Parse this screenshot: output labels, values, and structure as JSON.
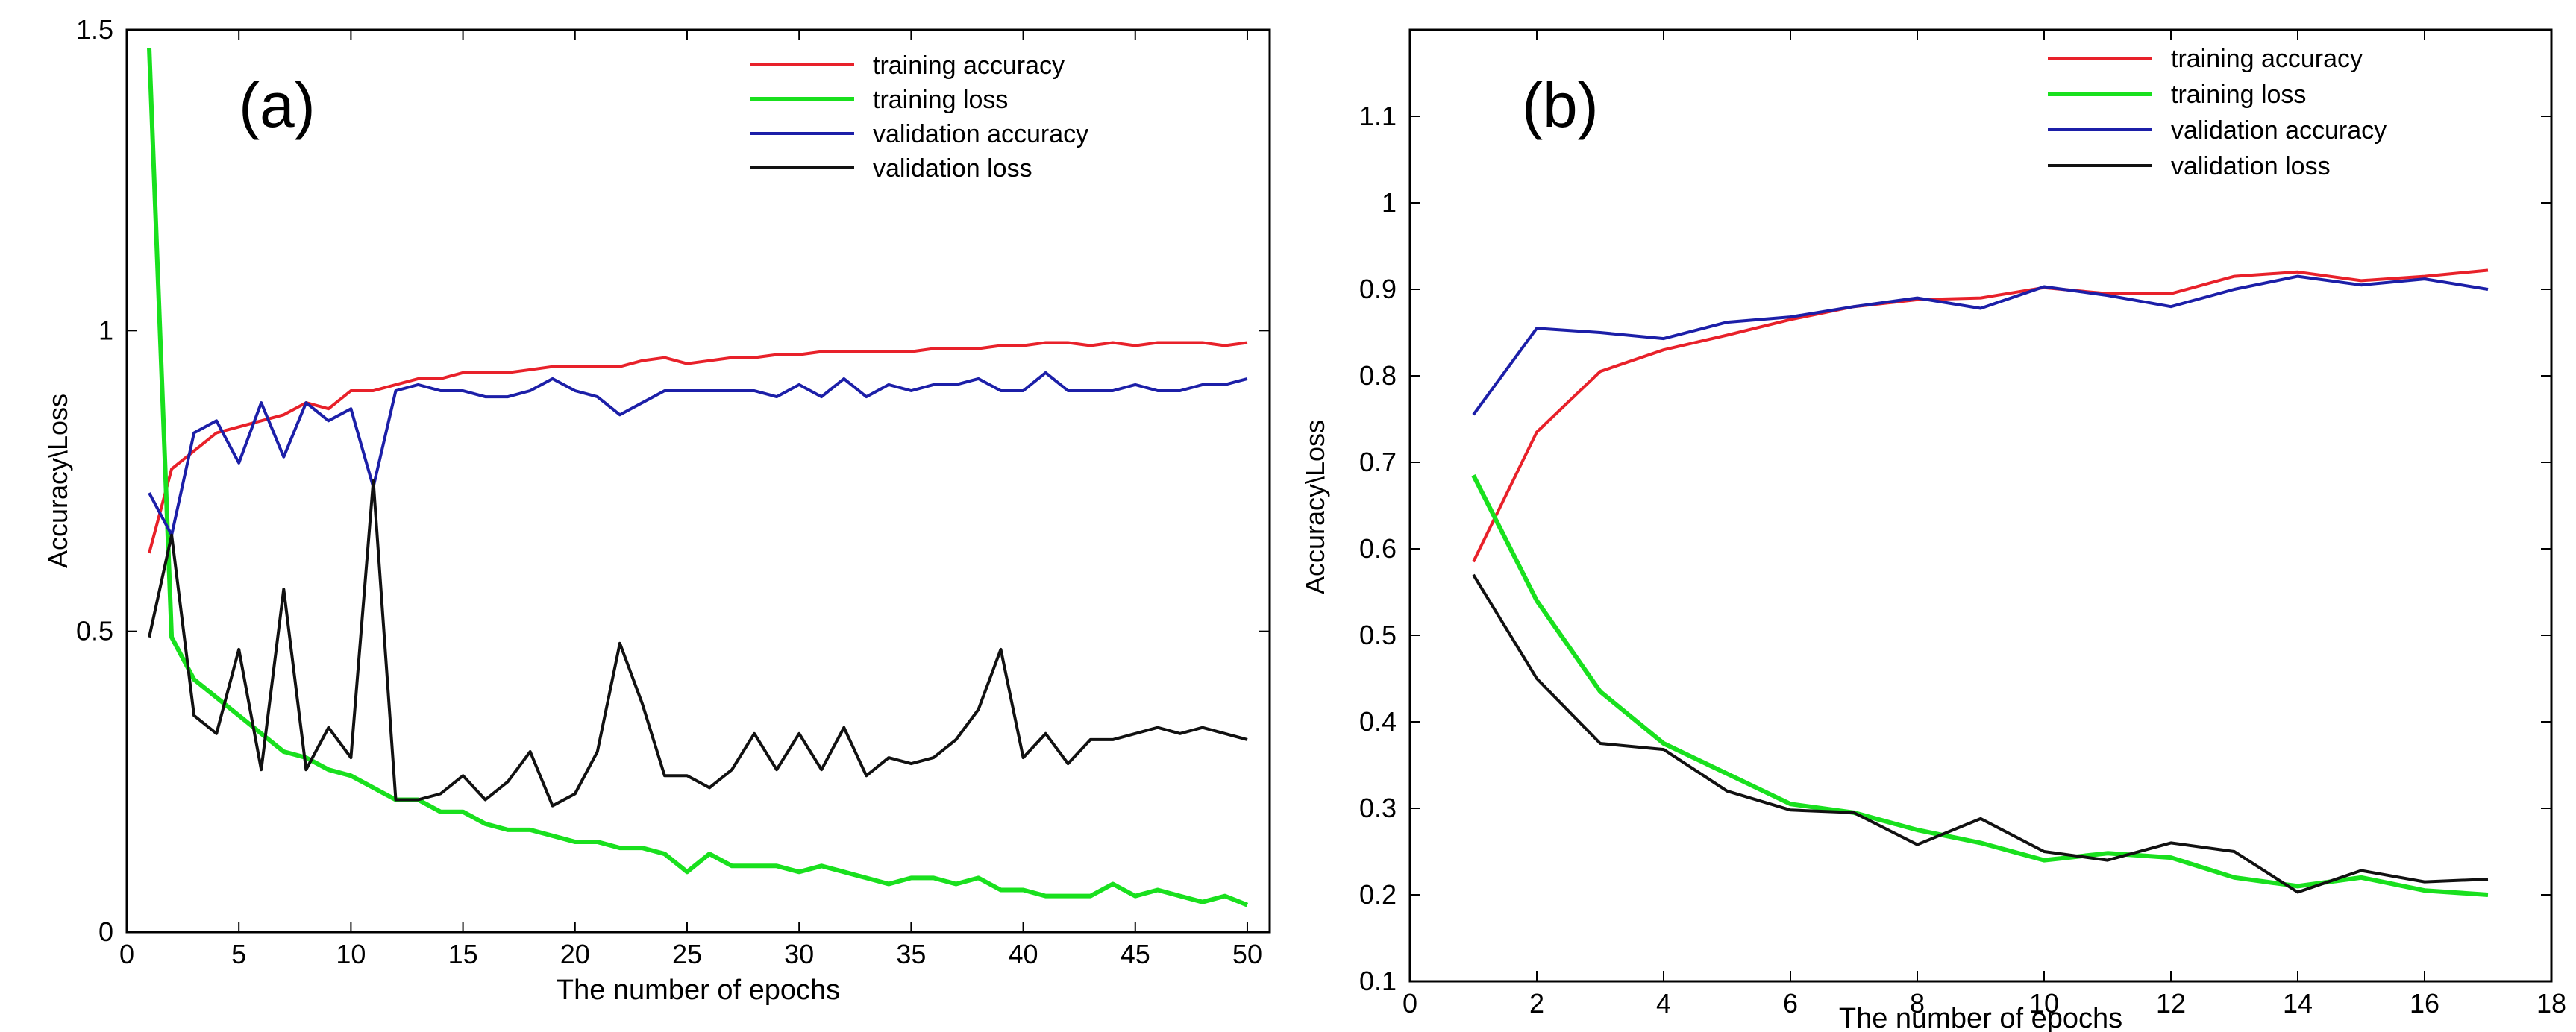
{
  "colors": {
    "training_accuracy": "#e8212a",
    "training_loss": "#19e01e",
    "validation_accuracy": "#1c1fa8",
    "validation_loss": "#111111",
    "axis": "#000000",
    "background": "#ffffff"
  },
  "chart_data": [
    {
      "type": "line",
      "panel_label": "(a)",
      "title": "",
      "xlabel": "The number of epochs",
      "ylabel": "Accuracy\\Loss",
      "xlim": [
        0,
        51
      ],
      "ylim": [
        0,
        1.5
      ],
      "xticks": [
        0,
        5,
        10,
        15,
        20,
        25,
        30,
        35,
        40,
        45,
        50
      ],
      "xtick_labels": [
        "0",
        "5",
        "10",
        "15",
        "20",
        "25",
        "30",
        "35",
        "40",
        "45",
        "50"
      ],
      "yticks": [
        0,
        0.5,
        1,
        1.5
      ],
      "ytick_labels": [
        "0",
        "0.5",
        "1",
        "1.5"
      ],
      "legend": [
        "training accuracy",
        "training loss",
        "validation accuracy",
        "validation loss"
      ],
      "legend_position": "top-right",
      "grid": false,
      "x": [
        1,
        2,
        3,
        4,
        5,
        6,
        7,
        8,
        9,
        10,
        11,
        12,
        13,
        14,
        15,
        16,
        17,
        18,
        19,
        20,
        21,
        22,
        23,
        24,
        25,
        26,
        27,
        28,
        29,
        30,
        31,
        32,
        33,
        34,
        35,
        36,
        37,
        38,
        39,
        40,
        41,
        42,
        43,
        44,
        45,
        46,
        47,
        48,
        49,
        50
      ],
      "series": [
        {
          "name": "training accuracy",
          "color_key": "training_accuracy",
          "values": [
            0.63,
            0.77,
            0.8,
            0.83,
            0.84,
            0.85,
            0.86,
            0.88,
            0.87,
            0.9,
            0.9,
            0.91,
            0.92,
            0.92,
            0.93,
            0.93,
            0.93,
            0.935,
            0.94,
            0.94,
            0.94,
            0.94,
            0.95,
            0.955,
            0.945,
            0.95,
            0.955,
            0.955,
            0.96,
            0.96,
            0.965,
            0.965,
            0.965,
            0.965,
            0.965,
            0.97,
            0.97,
            0.97,
            0.975,
            0.975,
            0.98,
            0.98,
            0.975,
            0.98,
            0.975,
            0.98,
            0.98,
            0.98,
            0.975,
            0.98
          ]
        },
        {
          "name": "training loss",
          "color_key": "training_loss",
          "values": [
            1.47,
            0.49,
            0.42,
            0.39,
            0.36,
            0.33,
            0.3,
            0.29,
            0.27,
            0.26,
            0.24,
            0.22,
            0.22,
            0.2,
            0.2,
            0.18,
            0.17,
            0.17,
            0.16,
            0.15,
            0.15,
            0.14,
            0.14,
            0.13,
            0.1,
            0.13,
            0.11,
            0.11,
            0.11,
            0.1,
            0.11,
            0.1,
            0.09,
            0.08,
            0.09,
            0.09,
            0.08,
            0.09,
            0.07,
            0.07,
            0.06,
            0.06,
            0.06,
            0.08,
            0.06,
            0.07,
            0.06,
            0.05,
            0.06,
            0.045
          ]
        },
        {
          "name": "validation accuracy",
          "color_key": "validation_accuracy",
          "values": [
            0.73,
            0.66,
            0.83,
            0.85,
            0.78,
            0.88,
            0.79,
            0.88,
            0.85,
            0.87,
            0.74,
            0.9,
            0.91,
            0.9,
            0.9,
            0.89,
            0.89,
            0.9,
            0.92,
            0.9,
            0.89,
            0.86,
            0.88,
            0.9,
            0.9,
            0.9,
            0.9,
            0.9,
            0.89,
            0.91,
            0.89,
            0.92,
            0.89,
            0.91,
            0.9,
            0.91,
            0.91,
            0.92,
            0.9,
            0.9,
            0.93,
            0.9,
            0.9,
            0.9,
            0.91,
            0.9,
            0.9,
            0.91,
            0.91,
            0.92
          ]
        },
        {
          "name": "validation loss",
          "color_key": "validation_loss",
          "values": [
            0.49,
            0.66,
            0.36,
            0.33,
            0.47,
            0.27,
            0.57,
            0.27,
            0.34,
            0.29,
            0.75,
            0.22,
            0.22,
            0.23,
            0.26,
            0.22,
            0.25,
            0.3,
            0.21,
            0.23,
            0.3,
            0.48,
            0.38,
            0.26,
            0.26,
            0.24,
            0.27,
            0.33,
            0.27,
            0.33,
            0.27,
            0.34,
            0.26,
            0.29,
            0.28,
            0.29,
            0.32,
            0.37,
            0.47,
            0.29,
            0.33,
            0.28,
            0.32,
            0.32,
            0.33,
            0.34,
            0.33,
            0.34,
            0.33,
            0.32
          ]
        }
      ]
    },
    {
      "type": "line",
      "panel_label": "(b)",
      "title": "",
      "xlabel": "The number of epochs",
      "ylabel": "Accuracy\\Loss",
      "xlim": [
        0,
        18
      ],
      "ylim": [
        0.1,
        1.2
      ],
      "xticks": [
        0,
        2,
        4,
        6,
        8,
        10,
        12,
        14,
        16,
        18
      ],
      "xtick_labels": [
        "0",
        "2",
        "4",
        "6",
        "8",
        "10",
        "12",
        "14",
        "16",
        "18"
      ],
      "yticks": [
        0.1,
        0.2,
        0.3,
        0.4,
        0.5,
        0.6,
        0.7,
        0.8,
        0.9,
        1,
        1.1
      ],
      "ytick_labels": [
        "0.1",
        "0.2",
        "0.3",
        "0.4",
        "0.5",
        "0.6",
        "0.7",
        "0.8",
        "0.9",
        "1",
        "1.1"
      ],
      "legend": [
        "training accuracy",
        "training loss",
        "validation accuracy",
        "validation loss"
      ],
      "legend_position": "top-right",
      "grid": false,
      "x": [
        1,
        2,
        3,
        4,
        5,
        6,
        7,
        8,
        9,
        10,
        11,
        12,
        13,
        14,
        15,
        16,
        17
      ],
      "series": [
        {
          "name": "training accuracy",
          "color_key": "training_accuracy",
          "values": [
            0.585,
            0.735,
            0.805,
            0.83,
            0.847,
            0.865,
            0.88,
            0.888,
            0.89,
            0.902,
            0.895,
            0.895,
            0.915,
            0.92,
            0.91,
            0.915,
            0.922
          ]
        },
        {
          "name": "training loss",
          "color_key": "training_loss",
          "values": [
            0.685,
            0.54,
            0.435,
            0.375,
            0.34,
            0.305,
            0.295,
            0.275,
            0.26,
            0.24,
            0.248,
            0.243,
            0.22,
            0.21,
            0.22,
            0.205,
            0.2
          ]
        },
        {
          "name": "validation accuracy",
          "color_key": "validation_accuracy",
          "values": [
            0.755,
            0.855,
            0.85,
            0.843,
            0.862,
            0.868,
            0.88,
            0.89,
            0.878,
            0.903,
            0.893,
            0.88,
            0.9,
            0.915,
            0.905,
            0.912,
            0.9
          ]
        },
        {
          "name": "validation loss",
          "color_key": "validation_loss",
          "values": [
            0.57,
            0.45,
            0.375,
            0.368,
            0.32,
            0.298,
            0.295,
            0.258,
            0.288,
            0.25,
            0.24,
            0.26,
            0.25,
            0.203,
            0.228,
            0.215,
            0.218
          ]
        }
      ]
    }
  ]
}
